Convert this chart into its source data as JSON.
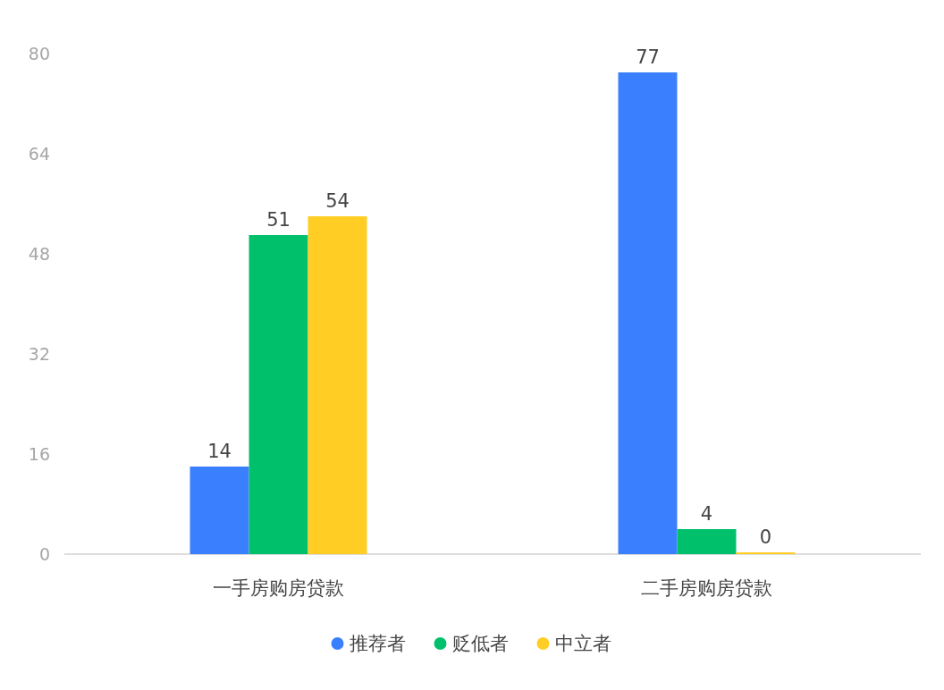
{
  "chart_data": {
    "type": "bar",
    "categories": [
      "一手房购房贷款",
      "二手房购房贷款"
    ],
    "series": [
      {
        "name": "推荐者",
        "color": "#3a7ffd",
        "values": [
          14,
          77
        ]
      },
      {
        "name": "贬低者",
        "color": "#00c06b",
        "values": [
          51,
          4
        ]
      },
      {
        "name": "中立者",
        "color": "#ffcd23",
        "values": [
          54,
          0
        ]
      }
    ],
    "ylim": [
      0,
      80
    ],
    "yticks": [
      0,
      16,
      32,
      48,
      64,
      80
    ],
    "grid": false,
    "legend": "bottom",
    "data_labels": true
  }
}
